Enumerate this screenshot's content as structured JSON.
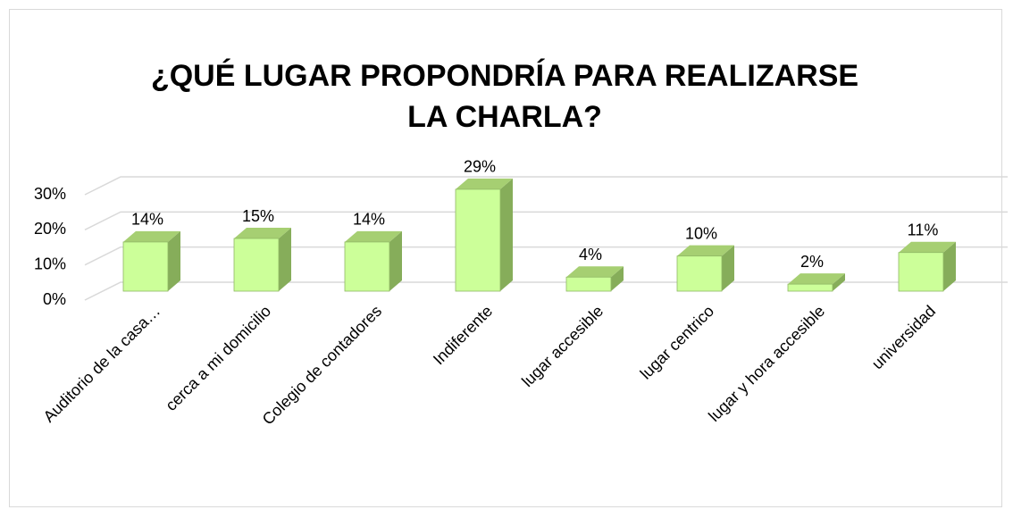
{
  "chart_data": {
    "type": "bar3d",
    "title": "¿QUÉ LUGAR PROPONDRÍA PARA REALIZARSE LA CHARLA?",
    "categories": [
      "Auditorio de la casa…",
      "cerca a mi domicilio",
      "Colegio de contadores",
      "Indiferente",
      "lugar accesible",
      "lugar centrico",
      "lugar y hora accesible",
      "universidad"
    ],
    "values": [
      14,
      15,
      14,
      29,
      4,
      10,
      2,
      11
    ],
    "value_labels": [
      "14%",
      "15%",
      "14%",
      "29%",
      "4%",
      "10%",
      "2%",
      "11%"
    ],
    "color": "#ccff99",
    "ylim": [
      0,
      30
    ],
    "yticks": [
      {
        "value": 0,
        "label": "0%"
      },
      {
        "value": 10,
        "label": "10%"
      },
      {
        "value": 20,
        "label": "20%"
      },
      {
        "value": 30,
        "label": "30%"
      }
    ],
    "grid": true
  }
}
